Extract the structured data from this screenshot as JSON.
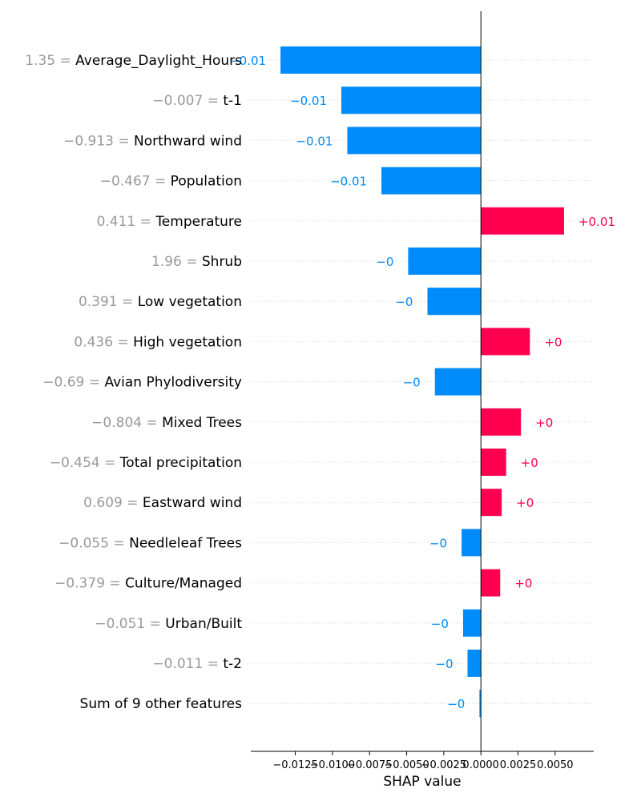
{
  "chart_data": {
    "type": "bar",
    "orientation": "horizontal",
    "xlabel": "SHAP value",
    "xlim": [
      -0.0155,
      0.0076
    ],
    "xticks": [
      -0.0125,
      -0.01,
      -0.0075,
      -0.005,
      -0.0025,
      0.0,
      0.0025,
      0.005
    ],
    "xtick_labels": [
      "−0.0125",
      "−0.0100",
      "−0.0075",
      "−0.0050",
      "−0.0025",
      "0.0000",
      "0.0025",
      "0.0050"
    ],
    "grid": "dotted row guides",
    "colors": {
      "positive": "#ff0051",
      "negative": "#008bfb",
      "feature_value": "#999999",
      "feature_name": "#000000",
      "axis": "#000000"
    },
    "rows": [
      {
        "feature_value": "1.35 = ",
        "feature": "Average_Daylight_Hours",
        "shap": -0.0135,
        "label": "−0.01"
      },
      {
        "feature_value": "−0.007 = ",
        "feature": "t-1",
        "shap": -0.0094,
        "label": "−0.01"
      },
      {
        "feature_value": "−0.913 = ",
        "feature": "Northward wind",
        "shap": -0.009,
        "label": "−0.01"
      },
      {
        "feature_value": "−0.467 = ",
        "feature": "Population",
        "shap": -0.0067,
        "label": "−0.01"
      },
      {
        "feature_value": "0.411 = ",
        "feature": "Temperature",
        "shap": 0.0056,
        "label": "+0.01"
      },
      {
        "feature_value": "1.96 = ",
        "feature": "Shrub",
        "shap": -0.0049,
        "label": "−0"
      },
      {
        "feature_value": "0.391 = ",
        "feature": "Low vegetation",
        "shap": -0.0036,
        "label": "−0"
      },
      {
        "feature_value": "0.436 = ",
        "feature": "High vegetation",
        "shap": 0.0033,
        "label": "+0"
      },
      {
        "feature_value": "−0.69 = ",
        "feature": "Avian Phylodiversity",
        "shap": -0.0031,
        "label": "−0"
      },
      {
        "feature_value": "−0.804 = ",
        "feature": "Mixed Trees",
        "shap": 0.0027,
        "label": "+0"
      },
      {
        "feature_value": "−0.454 = ",
        "feature": "Total precipitation",
        "shap": 0.0017,
        "label": "+0"
      },
      {
        "feature_value": "0.609 = ",
        "feature": "Eastward wind",
        "shap": 0.0014,
        "label": "+0"
      },
      {
        "feature_value": "−0.055 = ",
        "feature": "Needleleaf Trees",
        "shap": -0.0013,
        "label": "−0"
      },
      {
        "feature_value": "−0.379 = ",
        "feature": "Culture/Managed",
        "shap": 0.0013,
        "label": "+0"
      },
      {
        "feature_value": "−0.051 = ",
        "feature": "Urban/Built",
        "shap": -0.0012,
        "label": "−0"
      },
      {
        "feature_value": "−0.011 = ",
        "feature": "t-2",
        "shap": -0.0009,
        "label": "−0"
      },
      {
        "feature_value": "",
        "feature": "Sum of 9 other features",
        "shap": -0.0001,
        "label": "−0"
      }
    ]
  }
}
